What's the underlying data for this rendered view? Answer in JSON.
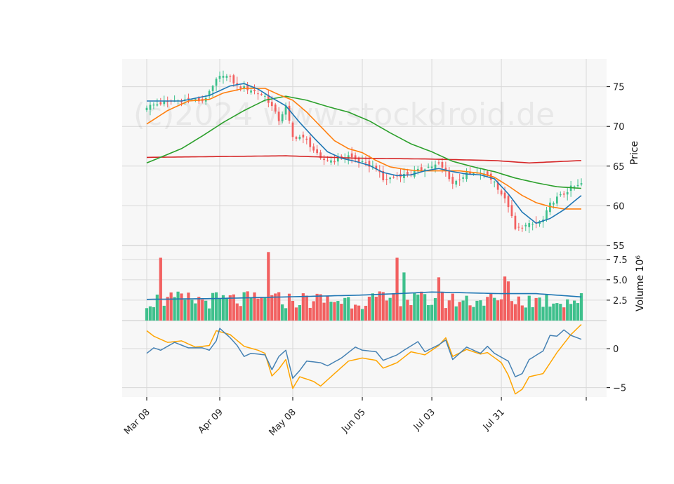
{
  "chart_data": {
    "type": "candlestick",
    "watermark": "(c)2024 www.stockdroid.de",
    "colors": {
      "up": "#3ec08c",
      "down": "#f26060",
      "sma_fast": "#1f77b4",
      "sma_mid": "#ff7f0e",
      "sma_slow": "#2ca02c",
      "sma_long": "#d62728",
      "vol_avg": "#1f77b4",
      "macd": "#4682b4",
      "signal": "#ffa500",
      "panel_bg": "#f7f7f7",
      "grid": "#d8d8d8"
    },
    "x_tick_labels": [
      "Mar 08",
      "Apr 09",
      "May 08",
      "Jun 05",
      "Jul 03",
      "Jul 31"
    ],
    "x_tick_index": [
      0,
      21,
      42,
      62,
      82,
      102
    ],
    "n_sessions": 126,
    "price_panel": {
      "ylabel": "Price",
      "ylim": [
        55,
        78.5
      ],
      "yticks": [
        55,
        60,
        65,
        70,
        75
      ],
      "close_keyframes": [
        [
          0,
          72.5
        ],
        [
          4,
          72.9
        ],
        [
          8,
          73.2
        ],
        [
          12,
          73.4
        ],
        [
          16,
          73.2
        ],
        [
          18,
          74.2
        ],
        [
          20,
          75.8
        ],
        [
          22,
          76.6
        ],
        [
          24,
          76.0
        ],
        [
          26,
          75.1
        ],
        [
          30,
          74.6
        ],
        [
          34,
          73.8
        ],
        [
          36,
          72.5
        ],
        [
          38,
          70.8
        ],
        [
          40,
          72.5
        ],
        [
          42,
          68.6
        ],
        [
          44,
          68.7
        ],
        [
          46,
          68.2
        ],
        [
          48,
          67.0
        ],
        [
          50,
          65.8
        ],
        [
          54,
          65.7
        ],
        [
          58,
          66.3
        ],
        [
          62,
          65.4
        ],
        [
          66,
          64.8
        ],
        [
          68,
          63.2
        ],
        [
          72,
          63.8
        ],
        [
          76,
          64.0
        ],
        [
          80,
          64.8
        ],
        [
          84,
          65.2
        ],
        [
          86,
          64.3
        ],
        [
          88,
          62.8
        ],
        [
          92,
          64.0
        ],
        [
          96,
          64.0
        ],
        [
          98,
          63.8
        ],
        [
          100,
          63.0
        ],
        [
          102,
          61.5
        ],
        [
          104,
          60.0
        ],
        [
          106,
          57.0
        ],
        [
          108,
          57.4
        ],
        [
          112,
          57.8
        ],
        [
          114,
          58.2
        ],
        [
          116,
          60.2
        ],
        [
          118,
          61.0
        ],
        [
          120,
          61.5
        ],
        [
          122,
          62.3
        ],
        [
          124,
          62.5
        ],
        [
          125,
          62.8
        ]
      ],
      "sma_fast_keyframes": [
        [
          0,
          73.2
        ],
        [
          10,
          73.2
        ],
        [
          18,
          73.9
        ],
        [
          24,
          75.1
        ],
        [
          28,
          75.4
        ],
        [
          32,
          74.7
        ],
        [
          36,
          73.6
        ],
        [
          40,
          72.6
        ],
        [
          44,
          70.5
        ],
        [
          48,
          68.6
        ],
        [
          52,
          66.8
        ],
        [
          56,
          66.0
        ],
        [
          60,
          65.6
        ],
        [
          64,
          65.1
        ],
        [
          68,
          64.2
        ],
        [
          72,
          63.8
        ],
        [
          76,
          63.9
        ],
        [
          80,
          64.4
        ],
        [
          84,
          64.7
        ],
        [
          88,
          64.3
        ],
        [
          92,
          64.0
        ],
        [
          96,
          63.9
        ],
        [
          100,
          63.4
        ],
        [
          104,
          61.5
        ],
        [
          108,
          59.2
        ],
        [
          112,
          57.8
        ],
        [
          116,
          58.4
        ],
        [
          120,
          59.5
        ],
        [
          125,
          61.3
        ]
      ],
      "sma_mid_keyframes": [
        [
          0,
          70.3
        ],
        [
          6,
          72.0
        ],
        [
          12,
          73.2
        ],
        [
          18,
          73.4
        ],
        [
          22,
          74.2
        ],
        [
          28,
          74.8
        ],
        [
          34,
          74.8
        ],
        [
          38,
          74.0
        ],
        [
          42,
          73.3
        ],
        [
          46,
          71.8
        ],
        [
          50,
          70.0
        ],
        [
          54,
          68.2
        ],
        [
          58,
          67.2
        ],
        [
          62,
          66.7
        ],
        [
          66,
          65.7
        ],
        [
          70,
          64.9
        ],
        [
          74,
          64.6
        ],
        [
          78,
          64.4
        ],
        [
          84,
          64.4
        ],
        [
          90,
          64.4
        ],
        [
          96,
          64.1
        ],
        [
          100,
          63.6
        ],
        [
          104,
          62.5
        ],
        [
          108,
          61.3
        ],
        [
          112,
          60.4
        ],
        [
          116,
          59.9
        ],
        [
          120,
          59.6
        ],
        [
          125,
          59.6
        ]
      ],
      "sma_slow_keyframes": [
        [
          0,
          65.4
        ],
        [
          10,
          67.2
        ],
        [
          16,
          68.8
        ],
        [
          22,
          70.5
        ],
        [
          28,
          72.0
        ],
        [
          34,
          73.3
        ],
        [
          40,
          73.8
        ],
        [
          46,
          73.3
        ],
        [
          52,
          72.5
        ],
        [
          58,
          71.8
        ],
        [
          64,
          70.7
        ],
        [
          70,
          69.2
        ],
        [
          76,
          67.8
        ],
        [
          82,
          66.8
        ],
        [
          88,
          65.6
        ],
        [
          94,
          64.9
        ],
        [
          100,
          64.3
        ],
        [
          106,
          63.5
        ],
        [
          112,
          62.9
        ],
        [
          118,
          62.4
        ],
        [
          125,
          62.2
        ]
      ],
      "sma_long_keyframes": [
        [
          0,
          66.1
        ],
        [
          20,
          66.2
        ],
        [
          40,
          66.3
        ],
        [
          60,
          66.0
        ],
        [
          80,
          65.9
        ],
        [
          100,
          65.7
        ],
        [
          110,
          65.4
        ],
        [
          125,
          65.7
        ]
      ]
    },
    "volume_panel": {
      "ylabel": "Volume  10⁶",
      "unit_exponent": "6",
      "ylim": [
        0,
        9.2
      ],
      "yticks": [
        2.5,
        5.0,
        7.5
      ],
      "spikes": [
        [
          4,
          7.7
        ],
        [
          35,
          8.4
        ],
        [
          72,
          7.7
        ],
        [
          74,
          5.9
        ],
        [
          84,
          5.3
        ],
        [
          103,
          5.4
        ],
        [
          104,
          4.8
        ]
      ],
      "avg_keyframes": [
        [
          0,
          2.6
        ],
        [
          20,
          2.7
        ],
        [
          40,
          2.9
        ],
        [
          60,
          3.1
        ],
        [
          72,
          3.3
        ],
        [
          82,
          3.5
        ],
        [
          92,
          3.4
        ],
        [
          102,
          3.3
        ],
        [
          112,
          3.3
        ],
        [
          125,
          2.9
        ]
      ]
    },
    "macd_panel": {
      "ylim": [
        -6.2,
        3.6
      ],
      "yticks": [
        -5,
        0
      ],
      "macd_keyframes": [
        [
          0,
          -0.6
        ],
        [
          2,
          0.1
        ],
        [
          4,
          -0.2
        ],
        [
          8,
          0.8
        ],
        [
          12,
          0.1
        ],
        [
          16,
          0.1
        ],
        [
          18,
          -0.2
        ],
        [
          20,
          1.0
        ],
        [
          21,
          2.6
        ],
        [
          24,
          1.4
        ],
        [
          26,
          0.4
        ],
        [
          28,
          -1.0
        ],
        [
          30,
          -0.6
        ],
        [
          34,
          -0.8
        ],
        [
          35,
          -1.7
        ],
        [
          36,
          -2.7
        ],
        [
          38,
          -1.0
        ],
        [
          40,
          -0.2
        ],
        [
          42,
          -3.8
        ],
        [
          44,
          -2.8
        ],
        [
          46,
          -1.6
        ],
        [
          50,
          -1.8
        ],
        [
          52,
          -2.2
        ],
        [
          56,
          -1.2
        ],
        [
          60,
          0.2
        ],
        [
          62,
          -0.2
        ],
        [
          66,
          -0.4
        ],
        [
          68,
          -1.5
        ],
        [
          72,
          -0.8
        ],
        [
          74,
          -0.2
        ],
        [
          78,
          0.9
        ],
        [
          80,
          -0.4
        ],
        [
          84,
          0.5
        ],
        [
          86,
          1.1
        ],
        [
          88,
          -1.4
        ],
        [
          92,
          0.2
        ],
        [
          96,
          -0.6
        ],
        [
          98,
          0.3
        ],
        [
          100,
          -0.6
        ],
        [
          104,
          -1.6
        ],
        [
          106,
          -3.6
        ],
        [
          108,
          -3.2
        ],
        [
          110,
          -1.4
        ],
        [
          114,
          -0.3
        ],
        [
          116,
          1.7
        ],
        [
          118,
          1.6
        ],
        [
          120,
          2.4
        ],
        [
          122,
          1.7
        ],
        [
          125,
          1.2
        ]
      ],
      "signal_keyframes": [
        [
          0,
          2.3
        ],
        [
          2,
          1.6
        ],
        [
          6,
          0.8
        ],
        [
          10,
          1.0
        ],
        [
          14,
          0.2
        ],
        [
          18,
          0.4
        ],
        [
          20,
          2.3
        ],
        [
          24,
          1.8
        ],
        [
          28,
          0.3
        ],
        [
          32,
          -0.2
        ],
        [
          34,
          -0.6
        ],
        [
          36,
          -3.5
        ],
        [
          38,
          -2.6
        ],
        [
          40,
          -1.4
        ],
        [
          42,
          -5.1
        ],
        [
          44,
          -3.6
        ],
        [
          48,
          -4.2
        ],
        [
          50,
          -4.8
        ],
        [
          54,
          -3.2
        ],
        [
          58,
          -1.6
        ],
        [
          62,
          -1.2
        ],
        [
          66,
          -1.5
        ],
        [
          68,
          -2.5
        ],
        [
          72,
          -1.8
        ],
        [
          76,
          -0.4
        ],
        [
          80,
          -0.8
        ],
        [
          84,
          0.4
        ],
        [
          86,
          1.4
        ],
        [
          88,
          -1.0
        ],
        [
          92,
          -0.1
        ],
        [
          96,
          -0.7
        ],
        [
          98,
          -0.5
        ],
        [
          102,
          -1.8
        ],
        [
          104,
          -3.4
        ],
        [
          106,
          -5.8
        ],
        [
          108,
          -5.2
        ],
        [
          110,
          -3.6
        ],
        [
          114,
          -3.2
        ],
        [
          118,
          -0.5
        ],
        [
          122,
          1.8
        ],
        [
          125,
          3.1
        ]
      ]
    }
  }
}
